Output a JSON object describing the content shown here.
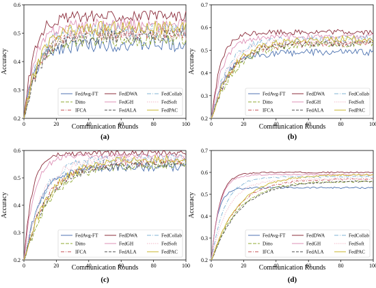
{
  "chart_data": [
    {
      "id": "a",
      "panel_label": "(a)",
      "type": "line",
      "xlabel": "Communication Rounds",
      "ylabel": "Accuracy",
      "xlim": [
        0,
        100
      ],
      "ylim": [
        0.2,
        0.6
      ],
      "xticks": [
        0,
        20,
        40,
        60,
        80,
        100
      ],
      "yticks": [
        0.2,
        0.3,
        0.4,
        0.5,
        0.6
      ],
      "legend_position": "lower-right",
      "grid": false,
      "series": [
        {
          "name": "FedAvg-FT",
          "color": "#4c72b0",
          "dash": "",
          "final": 0.46,
          "rise": 7,
          "noise": 0.025
        },
        {
          "name": "Ditto",
          "color": "#8fa832",
          "dash": "5,2",
          "final": 0.48,
          "rise": 8,
          "noise": 0.025
        },
        {
          "name": "IFCA",
          "color": "#c44e52",
          "dash": "5,2,1,2",
          "final": 0.5,
          "rise": 9,
          "noise": 0.025
        },
        {
          "name": "FedDWA",
          "color": "#8b2b3a",
          "dash": "",
          "final": 0.56,
          "rise": 6,
          "noise": 0.02
        },
        {
          "name": "FedGH",
          "color": "#dd8fb5",
          "dash": "",
          "final": 0.53,
          "rise": 7,
          "noise": 0.02
        },
        {
          "name": "FedALA",
          "color": "#4d4d4d",
          "dash": "4,2",
          "final": 0.49,
          "rise": 9,
          "noise": 0.025
        },
        {
          "name": "FedCollab",
          "color": "#7fb3d5",
          "dash": "6,2,1,2",
          "final": 0.51,
          "rise": 8,
          "noise": 0.025
        },
        {
          "name": "FedSoft",
          "color": "#f2b6c6",
          "dash": "1.5,1.5",
          "final": 0.5,
          "rise": 8,
          "noise": 0.025
        },
        {
          "name": "FedPAC",
          "color": "#c9b52a",
          "dash": "",
          "final": 0.52,
          "rise": 9,
          "noise": 0.025
        }
      ]
    },
    {
      "id": "b",
      "panel_label": "(b)",
      "type": "line",
      "xlabel": "Communication Rounds",
      "ylabel": "Accuracy",
      "xlim": [
        0,
        100
      ],
      "ylim": [
        0.2,
        0.7
      ],
      "xticks": [
        0,
        20,
        40,
        60,
        80,
        100
      ],
      "yticks": [
        0.2,
        0.3,
        0.4,
        0.5,
        0.6,
        0.7
      ],
      "legend_position": "lower-right",
      "grid": false,
      "series": [
        {
          "name": "FedAvg-FT",
          "color": "#4c72b0",
          "dash": "",
          "final": 0.49,
          "rise": 9,
          "noise": 0.015
        },
        {
          "name": "Ditto",
          "color": "#8fa832",
          "dash": "5,2",
          "final": 0.53,
          "rise": 14,
          "noise": 0.015
        },
        {
          "name": "IFCA",
          "color": "#c44e52",
          "dash": "5,2,1,2",
          "final": 0.53,
          "rise": 12,
          "noise": 0.015
        },
        {
          "name": "FedDWA",
          "color": "#8b2b3a",
          "dash": "",
          "final": 0.58,
          "rise": 6,
          "noise": 0.012
        },
        {
          "name": "FedGH",
          "color": "#dd8fb5",
          "dash": "",
          "final": 0.56,
          "rise": 7,
          "noise": 0.012
        },
        {
          "name": "FedALA",
          "color": "#4d4d4d",
          "dash": "4,2",
          "final": 0.53,
          "rise": 12,
          "noise": 0.015
        },
        {
          "name": "FedCollab",
          "color": "#7fb3d5",
          "dash": "6,2,1,2",
          "final": 0.55,
          "rise": 10,
          "noise": 0.015
        },
        {
          "name": "FedSoft",
          "color": "#f2b6c6",
          "dash": "1.5,1.5",
          "final": 0.54,
          "rise": 10,
          "noise": 0.015
        },
        {
          "name": "FedPAC",
          "color": "#c9b52a",
          "dash": "",
          "final": 0.55,
          "rise": 13,
          "noise": 0.015
        }
      ]
    },
    {
      "id": "c",
      "panel_label": "(c)",
      "type": "line",
      "xlabel": "Communication Rounds",
      "ylabel": "Accuracy",
      "xlim": [
        0,
        100
      ],
      "ylim": [
        0.2,
        0.6
      ],
      "xticks": [
        0,
        20,
        40,
        60,
        80,
        100
      ],
      "yticks": [
        0.2,
        0.3,
        0.4,
        0.5,
        0.6
      ],
      "legend_position": "lower-right",
      "grid": false,
      "series": [
        {
          "name": "FedAvg-FT",
          "color": "#4c72b0",
          "dash": "",
          "final": 0.54,
          "rise": 10,
          "noise": 0.015
        },
        {
          "name": "Ditto",
          "color": "#8fa832",
          "dash": "5,2",
          "final": 0.55,
          "rise": 16,
          "noise": 0.015
        },
        {
          "name": "IFCA",
          "color": "#c44e52",
          "dash": "5,2,1,2",
          "final": 0.56,
          "rise": 14,
          "noise": 0.015
        },
        {
          "name": "FedDWA",
          "color": "#8b2b3a",
          "dash": "",
          "final": 0.59,
          "rise": 5,
          "noise": 0.01
        },
        {
          "name": "FedGH",
          "color": "#dd8fb5",
          "dash": "",
          "final": 0.58,
          "rise": 6,
          "noise": 0.01
        },
        {
          "name": "FedALA",
          "color": "#4d4d4d",
          "dash": "4,2",
          "final": 0.55,
          "rise": 14,
          "noise": 0.015
        },
        {
          "name": "FedCollab",
          "color": "#7fb3d5",
          "dash": "6,2,1,2",
          "final": 0.57,
          "rise": 11,
          "noise": 0.015
        },
        {
          "name": "FedSoft",
          "color": "#f2b6c6",
          "dash": "1.5,1.5",
          "final": 0.57,
          "rise": 11,
          "noise": 0.015
        },
        {
          "name": "FedPAC",
          "color": "#c9b52a",
          "dash": "",
          "final": 0.57,
          "rise": 15,
          "noise": 0.015
        }
      ]
    },
    {
      "id": "d",
      "panel_label": "(d)",
      "type": "line",
      "xlabel": "Communication Rounds",
      "ylabel": "Accuracy",
      "xlim": [
        0,
        100
      ],
      "ylim": [
        0.2,
        0.7
      ],
      "xticks": [
        0,
        20,
        40,
        60,
        80,
        100
      ],
      "yticks": [
        0.2,
        0.3,
        0.4,
        0.5,
        0.6,
        0.7
      ],
      "legend_position": "lower-right",
      "grid": false,
      "series": [
        {
          "name": "FedAvg-FT",
          "color": "#4c72b0",
          "dash": "",
          "final": 0.53,
          "rise": 4,
          "noise": 0.004
        },
        {
          "name": "Ditto",
          "color": "#8fa832",
          "dash": "5,2",
          "final": 0.56,
          "rise": 16,
          "noise": 0.004
        },
        {
          "name": "IFCA",
          "color": "#c44e52",
          "dash": "5,2,1,2",
          "final": 0.57,
          "rise": 15,
          "noise": 0.004
        },
        {
          "name": "FedDWA",
          "color": "#8b2b3a",
          "dash": "",
          "final": 0.6,
          "rise": 5,
          "noise": 0.003
        },
        {
          "name": "FedGH",
          "color": "#dd8fb5",
          "dash": "",
          "final": 0.59,
          "rise": 5,
          "noise": 0.003
        },
        {
          "name": "FedALA",
          "color": "#4d4d4d",
          "dash": "4,2",
          "final": 0.56,
          "rise": 17,
          "noise": 0.004
        },
        {
          "name": "FedCollab",
          "color": "#7fb3d5",
          "dash": "6,2,1,2",
          "final": 0.58,
          "rise": 8,
          "noise": 0.004
        },
        {
          "name": "FedSoft",
          "color": "#f2b6c6",
          "dash": "1.5,1.5",
          "final": 0.57,
          "rise": 10,
          "noise": 0.004
        },
        {
          "name": "FedPAC",
          "color": "#c9b52a",
          "dash": "",
          "final": 0.59,
          "rise": 16,
          "noise": 0.004
        }
      ]
    }
  ]
}
